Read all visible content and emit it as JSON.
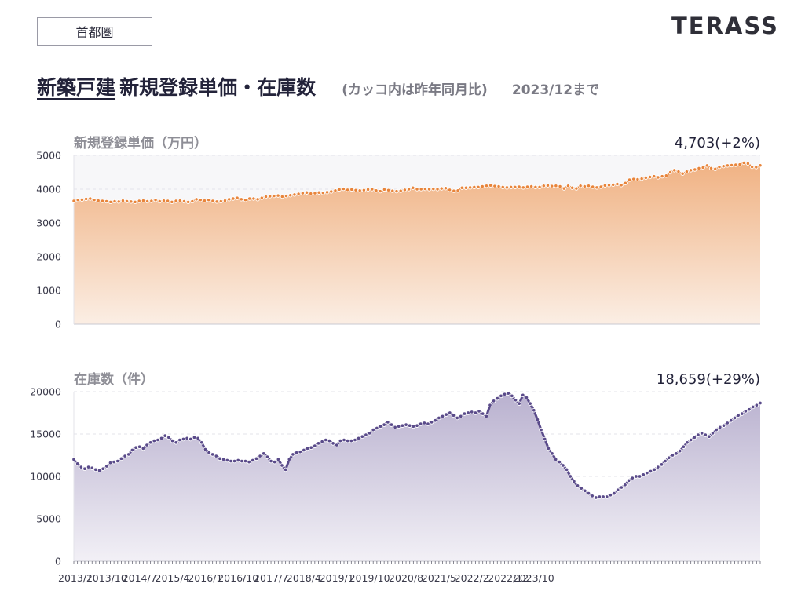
{
  "region": "首都圏",
  "logo": "TERASS",
  "title": {
    "underlined": "新築戸建",
    "main": "新規登録単価・在庫数",
    "note": "(カッコ内は昨年同月比)",
    "date": "2023/12まで"
  },
  "colors": {
    "price_line": "#e8843a",
    "price_fill_top": "#f0b283",
    "price_fill_bottom": "#fbeee4",
    "stock_line": "#5a4b8a",
    "stock_fill_top": "#b9b1cf",
    "stock_fill_bottom": "#f2f0f6"
  },
  "x_tick_labels": [
    "2013/1",
    "2013/10",
    "2014/7",
    "2015/4",
    "2016/1",
    "2016/10",
    "2017/7",
    "2018/4",
    "2019/1",
    "2019/10",
    "2020/8",
    "2021/5",
    "2022/2",
    "2022/12",
    "2023/10"
  ],
  "chart_data": [
    {
      "type": "area",
      "title": "新規登録単価（万円）",
      "latest_label": "4,703(+2%)",
      "x_start": "2013/1",
      "x_end": "2023/12",
      "y_ticks": [
        0,
        1000,
        2000,
        3000,
        4000,
        5000
      ],
      "ylim": [
        0,
        5000
      ],
      "grid": true,
      "values": [
        3650,
        3680,
        3690,
        3710,
        3720,
        3680,
        3660,
        3650,
        3640,
        3620,
        3640,
        3630,
        3660,
        3640,
        3630,
        3620,
        3650,
        3660,
        3640,
        3650,
        3680,
        3640,
        3660,
        3650,
        3620,
        3650,
        3660,
        3640,
        3620,
        3640,
        3700,
        3680,
        3660,
        3680,
        3650,
        3630,
        3640,
        3660,
        3700,
        3720,
        3740,
        3700,
        3680,
        3720,
        3720,
        3700,
        3740,
        3780,
        3790,
        3800,
        3810,
        3780,
        3800,
        3820,
        3840,
        3860,
        3880,
        3900,
        3870,
        3880,
        3900,
        3890,
        3910,
        3930,
        3960,
        3990,
        4010,
        3980,
        3990,
        3970,
        3960,
        3970,
        3990,
        4000,
        3960,
        3940,
        3990,
        3970,
        3950,
        3940,
        3950,
        3980,
        4000,
        4040,
        4000,
        4000,
        4010,
        4000,
        4010,
        4000,
        4020,
        4030,
        3980,
        3950,
        3960,
        4040,
        4040,
        4050,
        4060,
        4060,
        4080,
        4100,
        4110,
        4090,
        4080,
        4060,
        4050,
        4060,
        4060,
        4070,
        4050,
        4070,
        4080,
        4060,
        4060,
        4100,
        4110,
        4090,
        4100,
        4080,
        4020,
        4100,
        4040,
        4020,
        4100,
        4080,
        4100,
        4070,
        4050,
        4070,
        4110,
        4120,
        4130,
        4150,
        4120,
        4180,
        4280,
        4300,
        4290,
        4310,
        4340,
        4360,
        4380,
        4350,
        4380,
        4400,
        4500,
        4560,
        4520,
        4460,
        4520,
        4560,
        4580,
        4620,
        4640,
        4700,
        4620,
        4600,
        4660,
        4680,
        4700,
        4710,
        4720,
        4730,
        4780,
        4760,
        4660,
        4650,
        4703
      ]
    },
    {
      "type": "area",
      "title": "在庫数（件）",
      "latest_label": "18,659(+29%)",
      "x_start": "2013/1",
      "x_end": "2023/12",
      "y_ticks": [
        0,
        5000,
        10000,
        15000,
        20000
      ],
      "ylim": [
        0,
        20000
      ],
      "grid": true,
      "values": [
        12000,
        11500,
        11100,
        10900,
        11100,
        11000,
        10800,
        10700,
        10900,
        11200,
        11600,
        11700,
        11800,
        12100,
        12400,
        12600,
        13100,
        13400,
        13500,
        13300,
        13700,
        14000,
        14200,
        14300,
        14500,
        14800,
        14600,
        14200,
        14000,
        14300,
        14400,
        14500,
        14400,
        14600,
        14500,
        14000,
        13200,
        12800,
        12600,
        12400,
        12100,
        12000,
        11900,
        11800,
        11800,
        11900,
        11800,
        11800,
        11700,
        11900,
        12100,
        12400,
        12700,
        12300,
        11800,
        11700,
        12000,
        11300,
        10800,
        12000,
        12600,
        12800,
        12900,
        13100,
        13300,
        13400,
        13600,
        13900,
        14100,
        14300,
        14200,
        13900,
        13700,
        14200,
        14300,
        14200,
        14200,
        14300,
        14500,
        14700,
        14900,
        15100,
        15500,
        15700,
        15900,
        16100,
        16400,
        16100,
        15800,
        15900,
        16000,
        16100,
        16000,
        15900,
        16000,
        16200,
        16300,
        16200,
        16400,
        16600,
        16900,
        17100,
        17300,
        17500,
        17200,
        16900,
        17100,
        17400,
        17500,
        17600,
        17500,
        17700,
        17400,
        17100,
        18400,
        18900,
        19200,
        19500,
        19700,
        19800,
        19500,
        19000,
        18600,
        19600,
        19300,
        18600,
        17800,
        16700,
        15500,
        14400,
        13300,
        12700,
        12000,
        11700,
        11300,
        10800,
        10000,
        9400,
        8900,
        8600,
        8300,
        8000,
        7700,
        7500,
        7600,
        7600,
        7600,
        7800,
        8000,
        8400,
        8700,
        9000,
        9500,
        9800,
        10000,
        10000,
        10200,
        10400,
        10600,
        10800,
        11100,
        11400,
        11800,
        12200,
        12500,
        12700,
        13000,
        13500,
        14000,
        14300,
        14600,
        14900,
        15100,
        14900,
        14700,
        15100,
        15500,
        15800,
        16000,
        16300,
        16600,
        16900,
        17200,
        17400,
        17700,
        17900,
        18200,
        18400,
        18659
      ]
    }
  ]
}
